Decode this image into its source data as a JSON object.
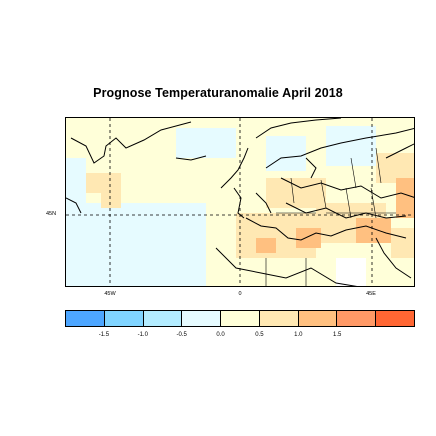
{
  "title": "Prognose Temperaturanomalie April 2018",
  "map": {
    "lon_labels": [
      "45W",
      "0",
      "45E"
    ],
    "lat_labels": [
      "45N"
    ],
    "grid_style": "dashed"
  },
  "legend": {
    "colors": [
      "#4da6ff",
      "#80d4ff",
      "#b3ecff",
      "#e6fbff",
      "#ffffd9",
      "#ffe8b3",
      "#ffc080",
      "#ff9966",
      "#ff6633"
    ],
    "tick_labels": [
      "-1.5",
      "-1.0",
      "-0.5",
      "0.0",
      "0.5",
      "1.0",
      "1.5"
    ]
  }
}
